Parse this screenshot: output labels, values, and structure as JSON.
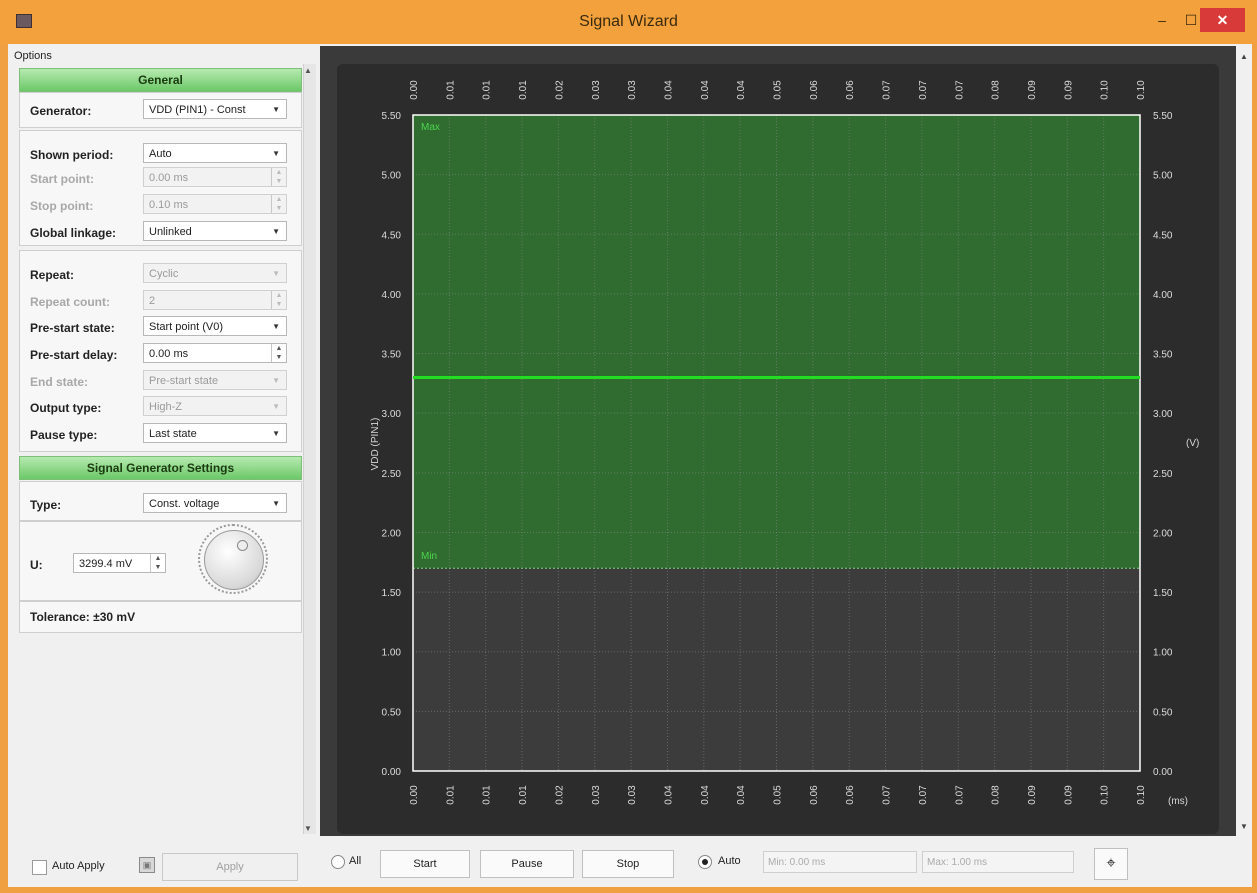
{
  "window": {
    "title": "Signal Wizard",
    "min_glyph": "–",
    "max_glyph": "☐",
    "close_glyph": "✕"
  },
  "options_label": "Options",
  "general": {
    "header": "General",
    "generator_label": "Generator:",
    "generator_value": "VDD (PIN1) - Const",
    "shown_period_label": "Shown period:",
    "shown_period_value": "Auto",
    "start_point_label": "Start point:",
    "start_point_value": "0.00 ms",
    "stop_point_label": "Stop point:",
    "stop_point_value": "0.10 ms",
    "global_linkage_label": "Global linkage:",
    "global_linkage_value": "Unlinked",
    "repeat_label": "Repeat:",
    "repeat_value": "Cyclic",
    "repeat_count_label": "Repeat count:",
    "repeat_count_value": "2",
    "prestart_state_label": "Pre-start state:",
    "prestart_state_value": "Start point (V0)",
    "prestart_delay_label": "Pre-start delay:",
    "prestart_delay_value": "0.00 ms",
    "end_state_label": "End state:",
    "end_state_value": "Pre-start state",
    "output_type_label": "Output type:",
    "output_type_value": "High-Z",
    "pause_type_label": "Pause type:",
    "pause_type_value": "Last state"
  },
  "signal_gen": {
    "header": "Signal Generator Settings",
    "type_label": "Type:",
    "type_value": "Const. voltage",
    "u_label": "U:",
    "u_value": "3299.4 mV",
    "tolerance": "Tolerance: ±30 mV"
  },
  "bottom_left": {
    "auto_apply": "Auto Apply",
    "apply": "Apply"
  },
  "toolbar": {
    "all": "All",
    "start": "Start",
    "pause": "Pause",
    "stop": "Stop",
    "auto": "Auto",
    "min_value": "Min: 0.00 ms",
    "max_value": "Max: 1.00 ms",
    "target_glyph": "⌖"
  },
  "chart_data": {
    "type": "line",
    "ylabel": "VDD (PIN1)",
    "yunit": "(V)",
    "xunit": "(ms)",
    "ylim": [
      0,
      5.5
    ],
    "xlim": [
      0,
      0.1
    ],
    "y_ticks": [
      "0.00",
      "0.50",
      "1.00",
      "1.50",
      "2.00",
      "2.50",
      "3.00",
      "3.50",
      "4.00",
      "4.50",
      "5.00",
      "5.50"
    ],
    "x_ticks": [
      "0.00",
      "0.01",
      "0.01",
      "0.01",
      "0.02",
      "0.03",
      "0.03",
      "0.04",
      "0.04",
      "0.04",
      "0.05",
      "0.06",
      "0.06",
      "0.07",
      "0.07",
      "0.07",
      "0.08",
      "0.09",
      "0.09",
      "0.10",
      "0.10"
    ],
    "tolerance_band": {
      "max": 5.5,
      "min": 1.7,
      "max_label": "Max",
      "min_label": "Min"
    },
    "series": [
      {
        "values": [
          3.2994,
          3.2994
        ],
        "x": [
          0.0,
          0.1
        ],
        "color": "#22dd22"
      }
    ],
    "grid": true
  }
}
